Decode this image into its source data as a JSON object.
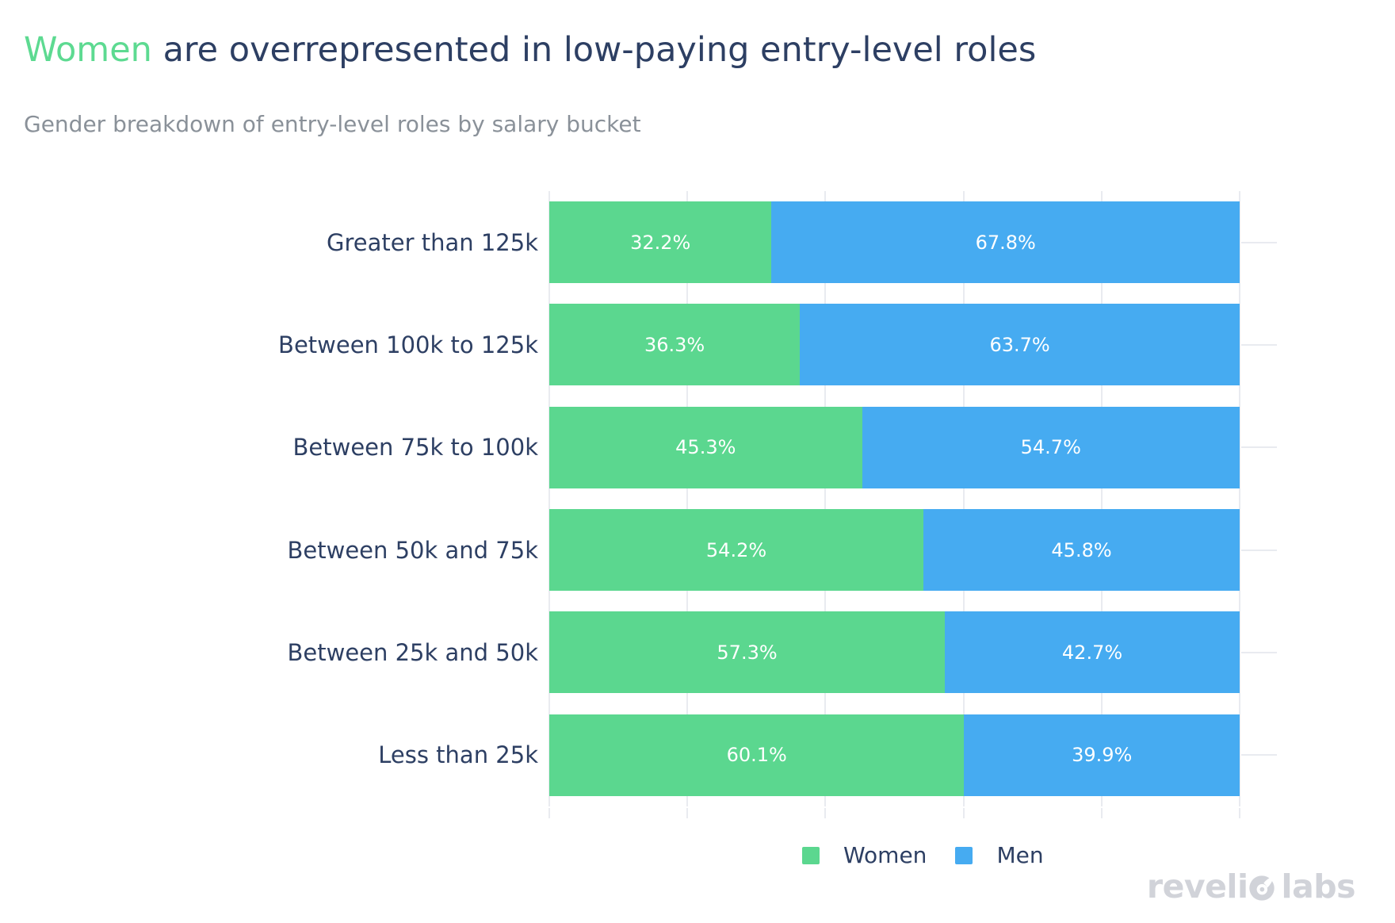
{
  "header": {
    "title_highlight": "Women",
    "title_rest": " are overrepresented in low-paying entry-level roles",
    "subtitle": "Gender breakdown of entry-level roles by salary bucket"
  },
  "chart_data": {
    "type": "bar",
    "orientation": "horizontal",
    "stacked": true,
    "title": "Women are overrepresented in low-paying entry-level roles",
    "subtitle": "Gender breakdown of entry-level roles by salary bucket",
    "categories": [
      "Greater than 125k",
      "Between 100k to 125k",
      "Between 75k to 100k",
      "Between 50k and 75k",
      "Between 25k and 50k",
      "Less than 25k"
    ],
    "series": [
      {
        "name": "Women",
        "color": "#5bd78f",
        "values": [
          32.2,
          36.3,
          45.3,
          54.2,
          57.3,
          60.1
        ]
      },
      {
        "name": "Men",
        "color": "#46abf1",
        "values": [
          67.8,
          63.7,
          54.7,
          45.8,
          42.7,
          39.9
        ]
      }
    ],
    "value_suffix": "%",
    "xlim": [
      0,
      100
    ],
    "gridlines_percent": [
      0,
      20,
      40,
      60,
      80,
      100
    ],
    "grid_on": true,
    "legend_position": "bottom",
    "bar_label_color": "#ffffff"
  },
  "legend": {
    "items": [
      {
        "label": "Women",
        "color": "#5bd78f"
      },
      {
        "label": "Men",
        "color": "#46abf1"
      }
    ]
  },
  "branding": {
    "name": "revelio labs",
    "wordmark_left": "reveli",
    "wordmark_right": "labs",
    "icon": "revelio-drop-icon",
    "color": "#d1d3d9"
  },
  "colors": {
    "title_navy": "#2d3f63",
    "subtitle_gray": "#8a9199",
    "gridline": "#e9ebf0",
    "women_green": "#5bd78f",
    "men_blue": "#46abf1"
  }
}
